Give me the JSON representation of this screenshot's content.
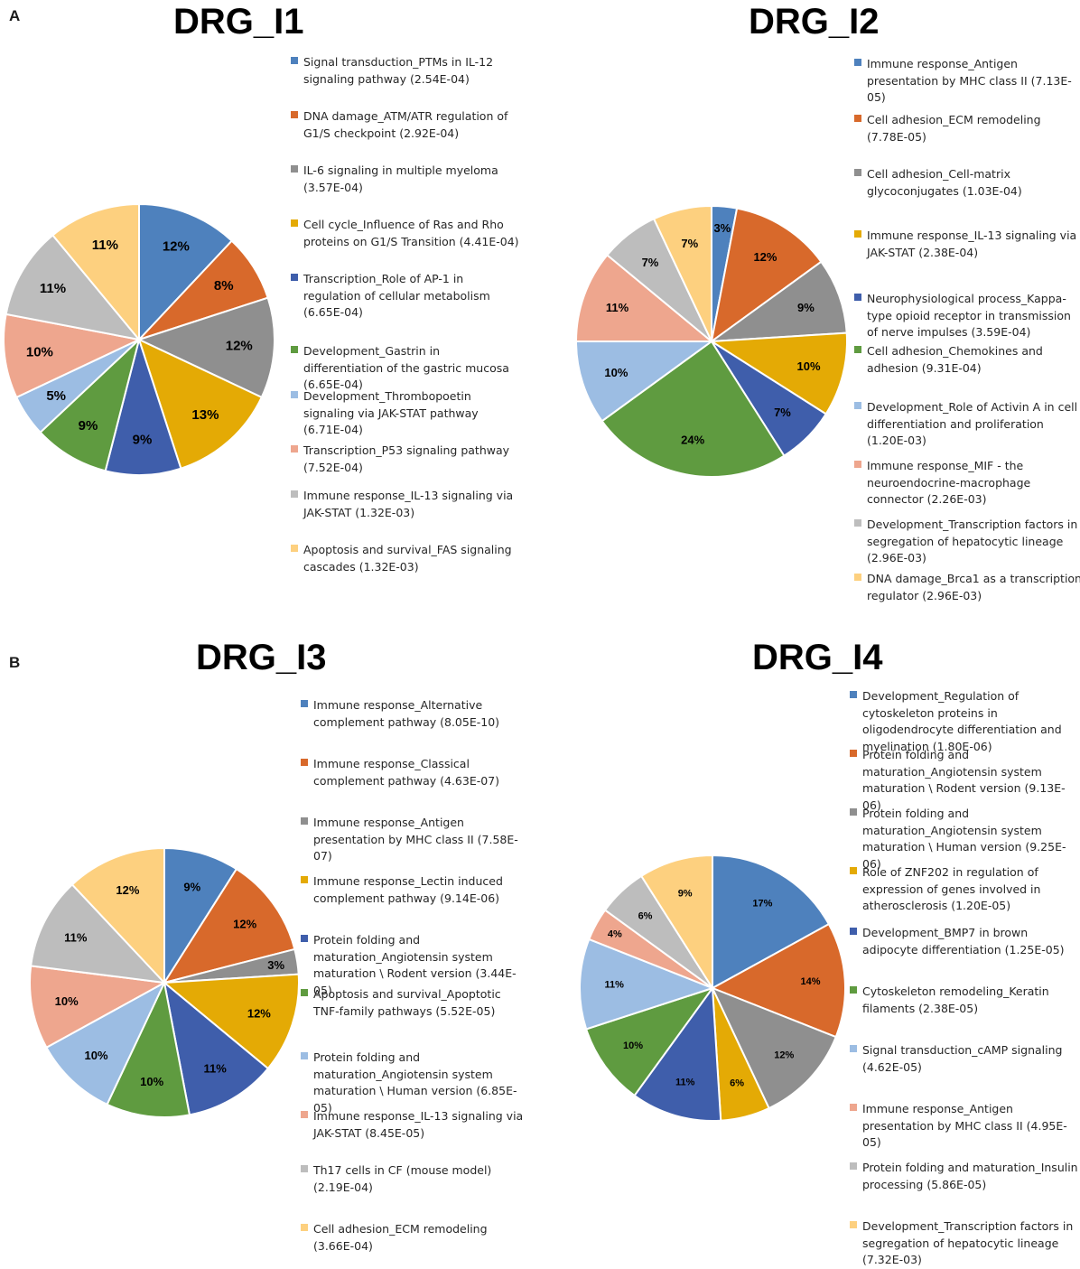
{
  "panel_letters": {
    "a": "A",
    "b": "B"
  },
  "chart_data": [
    {
      "type": "pie",
      "title": "DRG_I1",
      "slices": [
        {
          "label": "Signal transduction_PTMs in IL-12 signaling pathway (2.54E-04)",
          "value": 12,
          "display": "12%",
          "color": "#4e81bd"
        },
        {
          "label": "DNA damage_ATM/ATR regulation of G1/S checkpoint (2.92E-04)",
          "value": 8,
          "display": "8%",
          "color": "#d8692b"
        },
        {
          "label": "IL-6 signaling in multiple myeloma (3.57E-04)",
          "value": 12,
          "display": "12%",
          "color": "#8f8f8f"
        },
        {
          "label": "Cell cycle_Influence of Ras and Rho proteins on G1/S Transition (4.41E-04)",
          "value": 13,
          "display": "13%",
          "color": "#e4aa05"
        },
        {
          "label": "Transcription_Role of AP-1 in regulation of cellular metabolism (6.65E-04)",
          "value": 9,
          "display": "9%",
          "color": "#3f5eab"
        },
        {
          "label": "Development_Gastrin in differentiation of the gastric mucosa (6.65E-04)",
          "value": 9,
          "display": "9%",
          "color": "#5f9b40"
        },
        {
          "label": "Development_Thrombopoetin signaling via JAK-STAT pathway (6.71E-04)",
          "value": 5,
          "display": "5%",
          "color": "#9cbde3"
        },
        {
          "label": "Transcription_P53 signaling pathway (7.52E-04)",
          "value": 10,
          "display": "10%",
          "color": "#eea68e"
        },
        {
          "label": "Immune response_IL-13 signaling via JAK-STAT (1.32E-03)",
          "value": 11,
          "display": "11%",
          "color": "#bdbdbd"
        },
        {
          "label": "Apoptosis and survival_FAS signaling cascades (1.32E-03)",
          "value": 11,
          "display": "11%",
          "color": "#fdd07f"
        }
      ]
    },
    {
      "type": "pie",
      "title": "DRG_I2",
      "slices": [
        {
          "label": "Immune response_Antigen presentation by MHC class II (7.13E-05)",
          "value": 3,
          "display": "3%",
          "color": "#4e81bd"
        },
        {
          "label": "Cell adhesion_ECM remodeling (7.78E-05)",
          "value": 12,
          "display": "12%",
          "color": "#d8692b"
        },
        {
          "label": "Cell adhesion_Cell-matrix glycoconjugates (1.03E-04)",
          "value": 9,
          "display": "9%",
          "color": "#8f8f8f"
        },
        {
          "label": "Immune response_IL-13 signaling via JAK-STAT (2.38E-04)",
          "value": 10,
          "display": "10%",
          "color": "#e4aa05"
        },
        {
          "label": "Neurophysiological process_Kappa-type opioid receptor in transmission of nerve impulses (3.59E-04)",
          "value": 7,
          "display": "7%",
          "color": "#3f5eab"
        },
        {
          "label": "Cell adhesion_Chemokines and adhesion (9.31E-04)",
          "value": 24,
          "display": "24%",
          "color": "#5f9b40"
        },
        {
          "label": "Development_Role of Activin A in cell differentiation and proliferation (1.20E-03)",
          "value": 10,
          "display": "10%",
          "color": "#9cbde3"
        },
        {
          "label": "Immune response_MIF - the neuroendocrine-macrophage connector (2.26E-03)",
          "value": 11,
          "display": "11%",
          "color": "#eea68e"
        },
        {
          "label": "Development_Transcription factors in segregation of hepatocytic lineage (2.96E-03)",
          "value": 7,
          "display": "7%",
          "color": "#bdbdbd"
        },
        {
          "label": "DNA damage_Brca1 as a transcription regulator (2.96E-03)",
          "value": 7,
          "display": "7%",
          "color": "#fdd07f"
        }
      ]
    },
    {
      "type": "pie",
      "title": "DRG_I3",
      "slices": [
        {
          "label": "Immune response_Alternative complement pathway (8.05E-10)",
          "value": 9,
          "display": "9%",
          "color": "#4e81bd"
        },
        {
          "label": "Immune response_Classical complement pathway (4.63E-07)",
          "value": 12,
          "display": "12%",
          "color": "#d8692b"
        },
        {
          "label": "Immune response_Antigen presentation by MHC class II (7.58E-07)",
          "value": 3,
          "display": "3%",
          "color": "#8f8f8f"
        },
        {
          "label": "Immune response_Lectin induced complement pathway (9.14E-06)",
          "value": 12,
          "display": "12%",
          "color": "#e4aa05"
        },
        {
          "label": "Protein folding and maturation_Angiotensin system maturation \\ Rodent version (3.44E-05)",
          "value": 11,
          "display": "11%",
          "color": "#3f5eab"
        },
        {
          "label": "Apoptosis and survival_Apoptotic TNF-family pathways (5.52E-05)",
          "value": 10,
          "display": "10%",
          "color": "#5f9b40"
        },
        {
          "label": "Protein folding and maturation_Angiotensin system maturation \\ Human version (6.85E-05)",
          "value": 10,
          "display": "10%",
          "color": "#9cbde3"
        },
        {
          "label": "Immune response_IL-13 signaling via JAK-STAT (8.45E-05)",
          "value": 10,
          "display": "10%",
          "color": "#eea68e"
        },
        {
          "label": "Th17 cells in CF (mouse model) (2.19E-04)",
          "value": 11,
          "display": "11%",
          "color": "#bdbdbd"
        },
        {
          "label": "Cell adhesion_ECM remodeling (3.66E-04)",
          "value": 12,
          "display": "12%",
          "color": "#fdd07f"
        }
      ]
    },
    {
      "type": "pie",
      "title": "DRG_I4",
      "slices": [
        {
          "label": "Development_Regulation of cytoskeleton proteins in oligodendrocyte differentiation and myelination (1.80E-06)",
          "value": 17,
          "display": "17%",
          "color": "#4e81bd"
        },
        {
          "label": "Protein folding and maturation_Angiotensin system maturation \\ Rodent version (9.13E-06)",
          "value": 14,
          "display": "14%",
          "color": "#d8692b"
        },
        {
          "label": "Protein folding and maturation_Angiotensin system maturation \\ Human version (9.25E-06)",
          "value": 12,
          "display": "12%",
          "color": "#8f8f8f"
        },
        {
          "label": "Role of ZNF202 in regulation of expression of genes involved in atherosclerosis (1.20E-05)",
          "value": 6,
          "display": "6%",
          "color": "#e4aa05"
        },
        {
          "label": "Development_BMP7 in brown adipocyte differentiation (1.25E-05)",
          "value": 11,
          "display": "11%",
          "color": "#3f5eab"
        },
        {
          "label": "Cytoskeleton remodeling_Keratin filaments (2.38E-05)",
          "value": 10,
          "display": "10%",
          "color": "#5f9b40"
        },
        {
          "label": "Signal transduction_cAMP signaling (4.62E-05)",
          "value": 11,
          "display": "11%",
          "color": "#9cbde3"
        },
        {
          "label": "Immune response_Antigen presentation by MHC class II (4.95E-05)",
          "value": 4,
          "display": "4%",
          "color": "#eea68e"
        },
        {
          "label": "Protein folding and maturation_Insulin processing (5.86E-05)",
          "value": 6,
          "display": "6%",
          "color": "#bdbdbd"
        },
        {
          "label": "Development_Transcription factors in segregation of hepatocytic lineage (7.32E-03)",
          "value": 9,
          "display": "9%",
          "color": "#fdd07f"
        }
      ]
    }
  ]
}
